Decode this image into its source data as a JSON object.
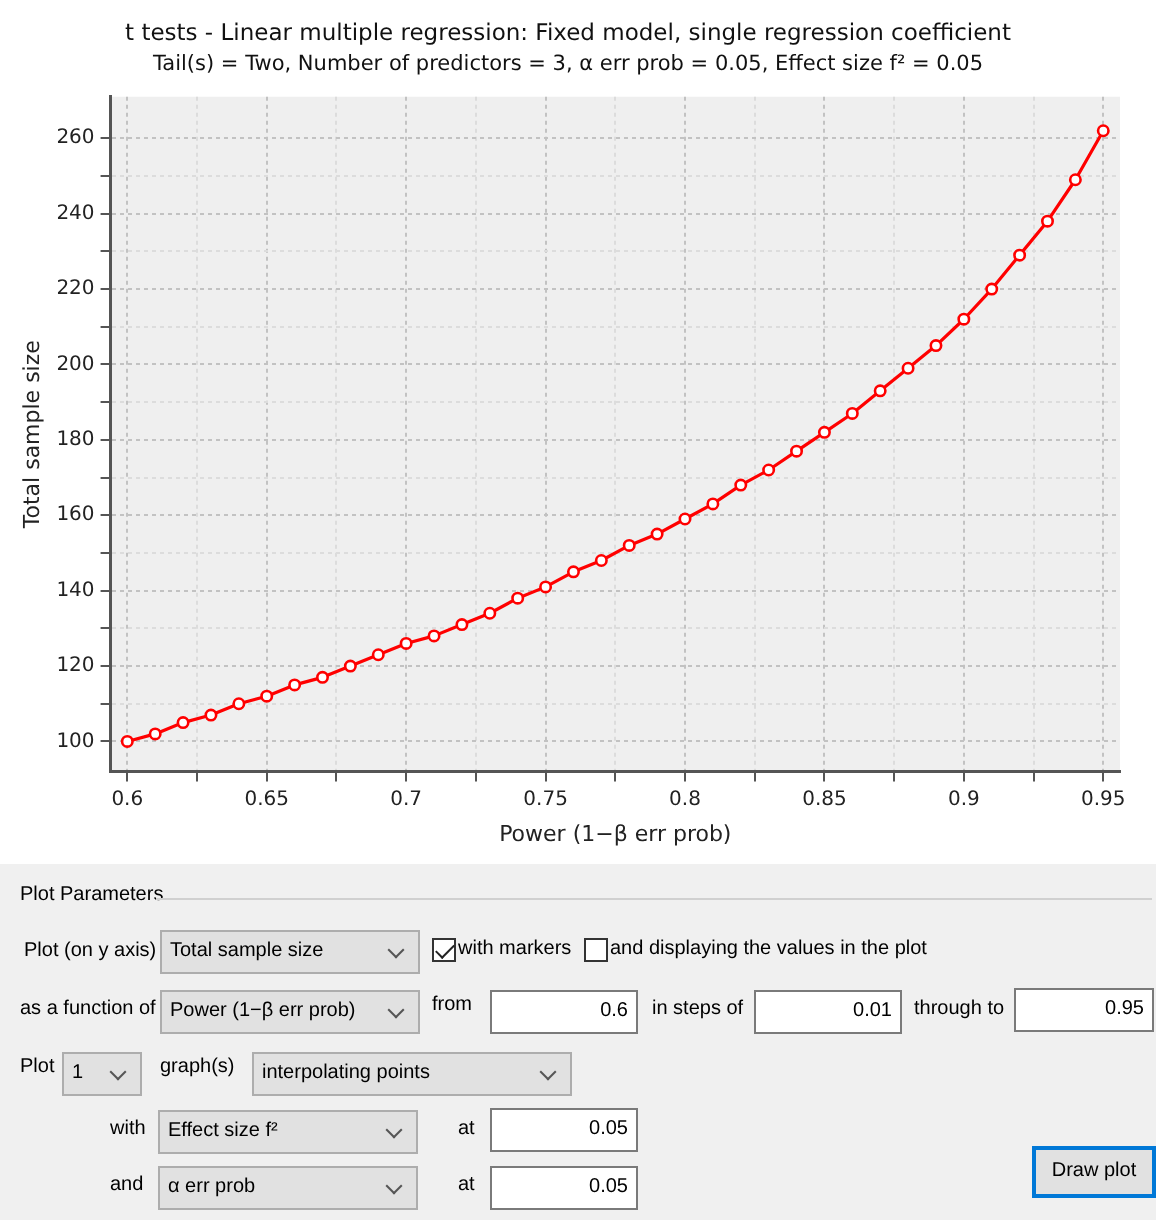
{
  "chart_data": [
    {
      "type": "line",
      "title": "t tests - Linear multiple regression: Fixed model, single regression coefficient",
      "subtitle": "Tail(s) = Two, Number of predictors = 3, α err prob = 0.05, Effect size f² = 0.05",
      "xlabel": "Power (1−β err prob)",
      "ylabel": "Total sample size",
      "x": [
        0.6,
        0.61,
        0.62,
        0.63,
        0.64,
        0.65,
        0.66,
        0.67,
        0.68,
        0.69,
        0.7,
        0.71,
        0.72,
        0.73,
        0.74,
        0.75,
        0.76,
        0.77,
        0.78,
        0.79,
        0.8,
        0.81,
        0.82,
        0.83,
        0.84,
        0.85,
        0.86,
        0.87,
        0.88,
        0.89,
        0.9,
        0.91,
        0.92,
        0.93,
        0.94,
        0.95
      ],
      "series": [
        {
          "color": "#ff0000",
          "values": [
            100,
            102,
            105,
            107,
            110,
            112,
            115,
            117,
            120,
            123,
            126,
            128,
            131,
            134,
            138,
            141,
            145,
            148,
            152,
            155,
            159,
            163,
            168,
            172,
            177,
            182,
            187,
            193,
            199,
            205,
            212,
            220,
            229,
            238,
            249,
            262
          ]
        }
      ],
      "xlim": [
        0.594,
        0.956
      ],
      "ylim": [
        92,
        271
      ],
      "xticks": [
        0.6,
        {
          "value": 0.625,
          "label": null
        },
        0.65,
        {
          "value": 0.675,
          "label": null
        },
        0.7,
        {
          "value": 0.725,
          "label": null
        },
        0.75,
        {
          "value": 0.775,
          "label": null
        },
        0.8,
        {
          "value": 0.825,
          "label": null
        },
        0.85,
        {
          "value": 0.875,
          "label": null
        },
        0.9,
        {
          "value": 0.925,
          "label": null
        },
        0.95
      ],
      "yticks": [
        100,
        {
          "value": 110,
          "label": null
        },
        120,
        {
          "value": 130,
          "label": null
        },
        140,
        {
          "value": 150,
          "label": null
        },
        160,
        {
          "value": 170,
          "label": null
        },
        180,
        {
          "value": 190,
          "label": null
        },
        200,
        {
          "value": 210,
          "label": null
        },
        220,
        {
          "value": 230,
          "label": null
        },
        240,
        {
          "value": 250,
          "label": null
        },
        260
      ],
      "grid": true,
      "marker": "circle",
      "line_style": "solid"
    },
    {
      "type": "other",
      "title": "Plot Parameters",
      "annotations": [
        "Plot (on y axis)",
        "Total sample size",
        "with markers",
        "and displaying the values in the plot",
        "as a function of",
        "Power (1−β err prob)",
        "from",
        "0.6",
        "in steps of",
        "0.01",
        "through to",
        "0.95",
        "Plot",
        "1",
        "graph(s)",
        "interpolating points",
        "with",
        "Effect size f²",
        "at",
        "0.05",
        "and",
        "α err prob",
        "at",
        "0.05",
        "Draw plot"
      ]
    }
  ]
}
